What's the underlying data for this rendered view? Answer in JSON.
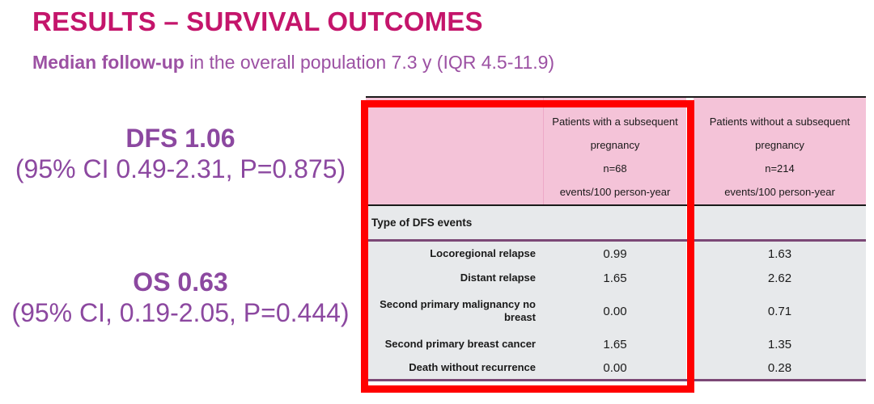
{
  "slide": {
    "title": "RESULTS – SURVIVAL OUTCOMES",
    "subtitle": {
      "lead": "Median follow-up",
      "rest": " in the overall population 7.3 y (IQR 4.5-11.9)"
    }
  },
  "stats": {
    "dfs": {
      "headline": "DFS 1.06",
      "detail": "(95% CI 0.49-2.31, P=0.875)"
    },
    "os": {
      "headline": "OS 0.63",
      "detail": "(95% CI, 0.19-2.05, P=0.444)"
    }
  },
  "table": {
    "columns": [
      {
        "lines": [
          "Patients with a subsequent",
          "pregnancy",
          "n=68",
          "events/100 person-year"
        ]
      },
      {
        "lines": [
          "Patients without a subsequent",
          "pregnancy",
          "n=214",
          "events/100 person-year"
        ]
      }
    ],
    "section_label": "Type of DFS events",
    "rows": [
      {
        "label": "Locoregional relapse",
        "with_pregnancy": "0.99",
        "without_pregnancy": "1.63"
      },
      {
        "label": "Distant relapse",
        "with_pregnancy": "1.65",
        "without_pregnancy": "2.62"
      },
      {
        "label": "Second primary malignancy no breast",
        "with_pregnancy": "0.00",
        "without_pregnancy": "0.71"
      },
      {
        "label": "Second primary breast cancer",
        "with_pregnancy": "1.65",
        "without_pregnancy": "1.35"
      },
      {
        "label": "Death without recurrence",
        "with_pregnancy": "0.00",
        "without_pregnancy": "0.28"
      }
    ]
  },
  "colors": {
    "title_magenta": "#C4156B",
    "subtitle_purple": "#9C51A3",
    "stat_purple": "#8C48A0",
    "header_pink": "#F4C3D8",
    "body_gray": "#E7E9EB",
    "rule_purple": "#7C4876",
    "rule_black": "#1A1A1A",
    "highlight_red": "#FF0000"
  }
}
